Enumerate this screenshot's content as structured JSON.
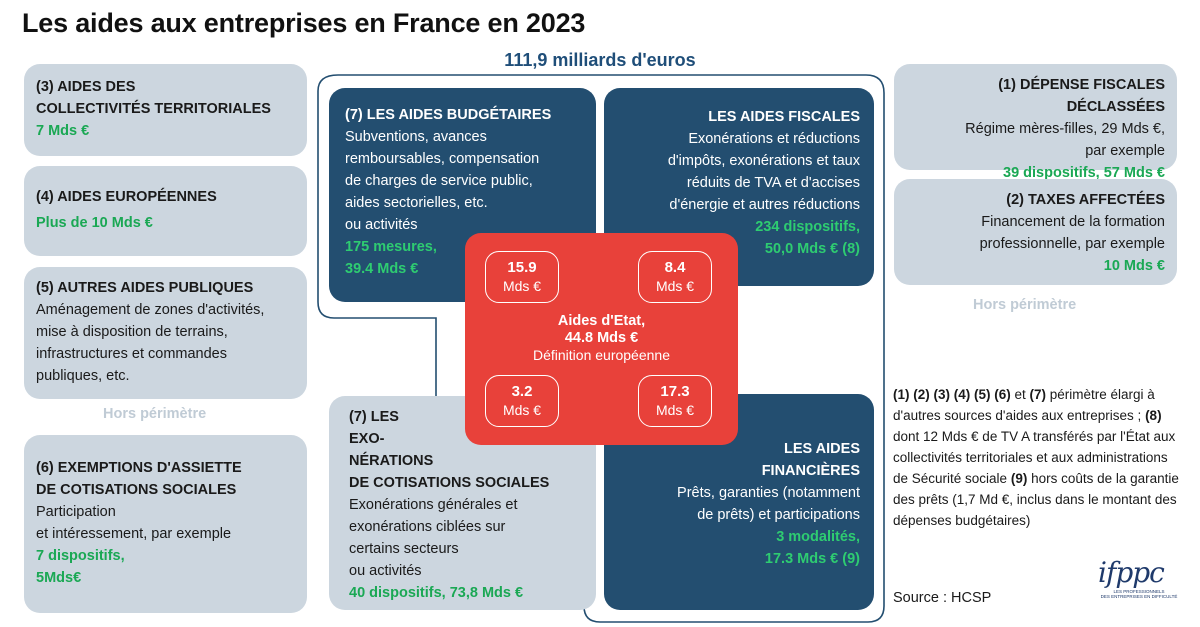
{
  "title": "Les aides aux entreprises en France en 2023",
  "total": "111,9 milliards d'euros",
  "left_cards": {
    "c3": {
      "head_line1": "(3) AIDES DES",
      "head_line2": "COLLECTIVITÉS TERRITORIALES",
      "amount": "7 Mds €"
    },
    "c4": {
      "head": "(4) AIDES EUROPÉENNES",
      "amount": "Plus de 10 Mds €"
    },
    "c5": {
      "head": "(5) AUTRES AIDES PUBLIQUES",
      "lines": [
        "Aménagement de zones d'activités,",
        "mise à disposition de terrains,",
        "infrastructures et commandes",
        "publiques, etc."
      ]
    },
    "hors": "Hors périmètre",
    "c6": {
      "head_line1": "(6) EXEMPTIONS D'ASSIETTE",
      "head_line2": "DE COTISATIONS SOCIALES",
      "lines": [
        "Participation",
        "et intéressement, par exemple"
      ],
      "green1": "7 dispositifs,",
      "green2": "5Mds€"
    }
  },
  "budgetaires": {
    "head": "(7) LES AIDES BUDGÉTAIRES",
    "lines": [
      "Subventions, avances",
      "remboursables, compensation",
      "de charges de service public,",
      "aides sectorielles, etc.",
      "ou activités"
    ],
    "green1": "175 mesures,",
    "green2": "39.4 Mds €"
  },
  "fiscales": {
    "head": "LES AIDES FISCALES",
    "lines": [
      "Exonérations et réductions",
      "d'impôts, exonérations et taux",
      "réduits de TVA et d'accises",
      "d'énergie et autres réductions"
    ],
    "green1": "234 dispositifs,",
    "green2": "50,0 Mds € (8)"
  },
  "exonerations": {
    "head_lines": [
      "(7) LES",
      "EXO-",
      "NÉRATIONS",
      "DE COTISATIONS SOCIALES"
    ],
    "lines": [
      "Exonérations générales et",
      "exonérations ciblées sur",
      "certains secteurs",
      "ou activités"
    ],
    "green": "40 dispositifs, 73,8 Mds €"
  },
  "financieres": {
    "head_lines": [
      "LES AIDES",
      "FINANCIÈRES"
    ],
    "lines": [
      "Prêts, garanties (notamment",
      "de prêts) et participations"
    ],
    "green1": "3 modalités,",
    "green2": "17.3 Mds € (9)"
  },
  "etat": {
    "pills": [
      {
        "value": "15.9",
        "unit": "Mds €"
      },
      {
        "value": "8.4",
        "unit": "Mds €"
      },
      {
        "value": "3.2",
        "unit": "Mds €"
      },
      {
        "value": "17.3",
        "unit": "Mds €"
      }
    ],
    "line1": "Aides d'Etat,",
    "line2": "44.8 Mds €",
    "line3": "Définition européenne"
  },
  "right_cards": {
    "c1": {
      "head": "(1) DÉPENSE FISCALES DÉCLASSÉES",
      "lines": [
        "Régime mères-filles, 29 Mds €,",
        "par exemple"
      ],
      "green": "39 dispositifs, 57 Mds €"
    },
    "c2": {
      "head": "(2) TAXES AFFECTÉES",
      "lines": [
        "Financement de la formation",
        "professionnelle, par exemple"
      ],
      "green": "10 Mds €"
    },
    "hors": "Hors périmètre"
  },
  "notes": {
    "p1_bold": "(1) (2) (3) (4) (5) (6)",
    "p1_mid": " et ",
    "p1_bold2": "(7)",
    "p1_rest": " périmètre élargi à d'autres sources d'aides aux entreprises ;",
    "p2_bold": "(8)",
    "p2_rest": " dont 12 Mds € de TV A transférés par l'État aux collectivités territoriales et aux administrations de Sécurité sociale",
    "p3_bold": "(9)",
    "p3_rest": " hors coûts de la garantie des prêts (1,7 Md €, inclus dans le montant des dépenses budgétaires)"
  },
  "source": "Source : HCSP",
  "logo": {
    "word": "ifppc",
    "sub1": "LES PROFESSIONNELS",
    "sub2": "DES ENTREPRISES EN DIFFICULTÉ"
  },
  "colors": {
    "dark": "#234e70",
    "light": "#ccd6df",
    "red": "#e8413a",
    "green": "#1aa854",
    "title_blue": "#1f4e79"
  }
}
